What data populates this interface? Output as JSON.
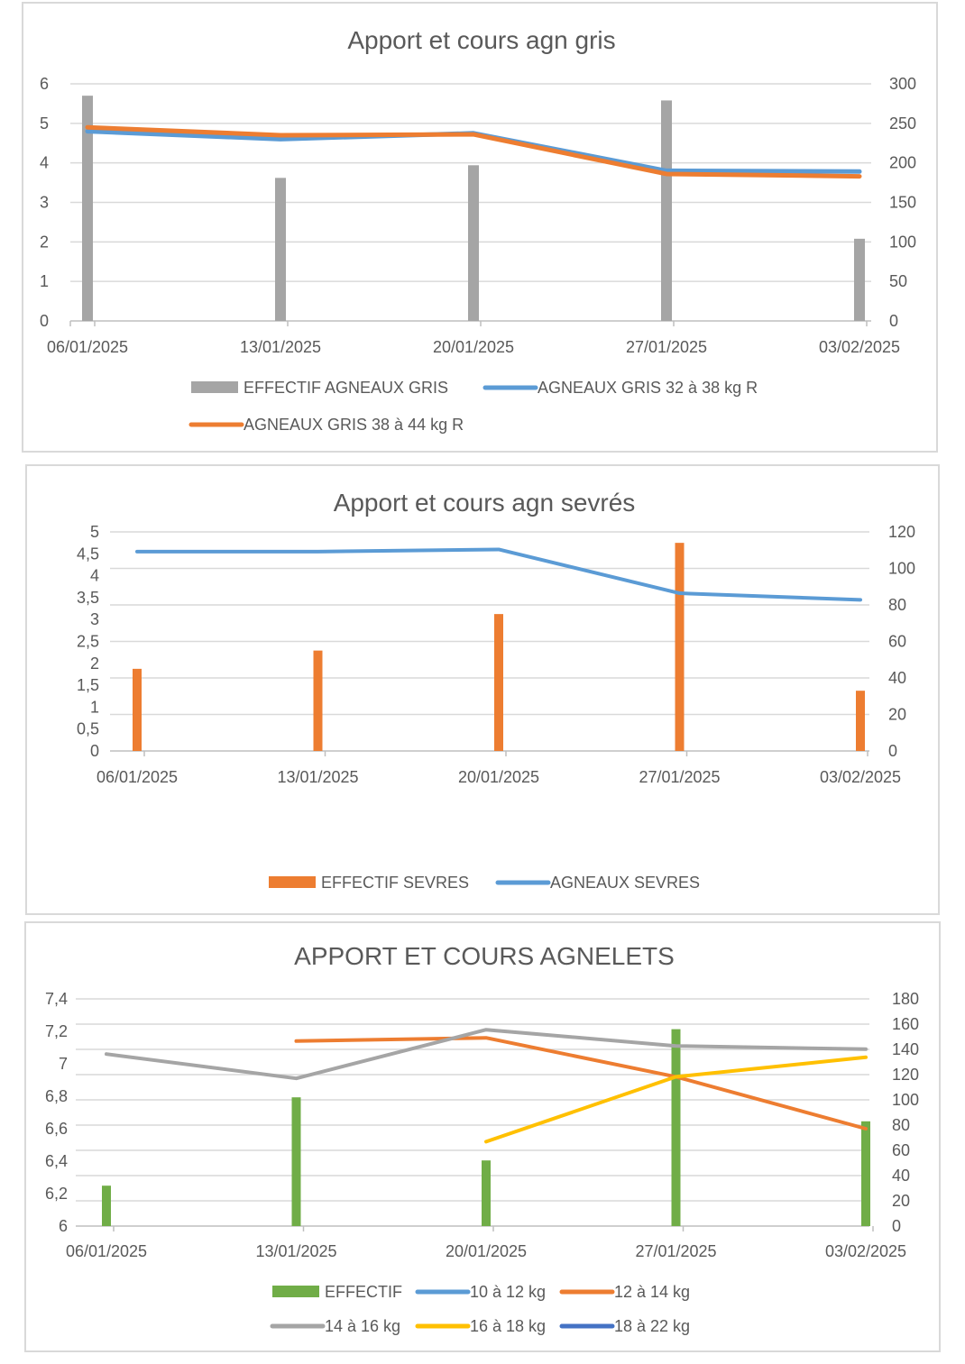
{
  "chart_data": [
    {
      "type": "bar+line",
      "title": "Apport et cours agn gris",
      "categories": [
        "06/01/2025",
        "13/01/2025",
        "20/01/2025",
        "27/01/2025",
        "03/02/2025"
      ],
      "y_left": {
        "min": 0,
        "max": 6,
        "ticks": [
          "0",
          "1",
          "2",
          "3",
          "4",
          "5",
          "6"
        ]
      },
      "y_right": {
        "min": 0,
        "max": 300,
        "ticks": [
          "0",
          "50",
          "100",
          "150",
          "200",
          "250",
          "300"
        ]
      },
      "bars": {
        "name": "EFFECTIF AGNEAUX GRIS",
        "color": "#a5a5a5",
        "axis": "right",
        "values": [
          285,
          181,
          197,
          279,
          104
        ]
      },
      "lines": [
        {
          "name": "AGNEAUX GRIS 32 à 38 kg R",
          "color": "#5b9bd5",
          "axis": "left",
          "values": [
            4.8,
            4.6,
            4.75,
            3.8,
            3.78
          ]
        },
        {
          "name": "AGNEAUX GRIS 38 à 44 kg R",
          "color": "#ed7d31",
          "axis": "left",
          "values": [
            4.9,
            4.7,
            4.72,
            3.72,
            3.66
          ]
        }
      ],
      "legend_position": "bottom"
    },
    {
      "type": "bar+line",
      "title": "Apport et cours agn sevrés",
      "categories": [
        "06/01/2025",
        "13/01/2025",
        "20/01/2025",
        "27/01/2025",
        "03/02/2025"
      ],
      "y_left": {
        "min": 0,
        "max": 5,
        "ticks": [
          "0",
          "0,5",
          "1",
          "1,5",
          "2",
          "2,5",
          "3",
          "3,5",
          "4",
          "4,5",
          "5"
        ]
      },
      "y_right": {
        "min": 0,
        "max": 120,
        "ticks": [
          "0",
          "20",
          "40",
          "60",
          "80",
          "100",
          "120"
        ]
      },
      "bars": {
        "name": "EFFECTIF SEVRES",
        "color": "#ed7d31",
        "axis": "right",
        "values": [
          45,
          55,
          75,
          114,
          33
        ]
      },
      "lines": [
        {
          "name": "AGNEAUX SEVRES",
          "color": "#5b9bd5",
          "axis": "left",
          "values": [
            4.55,
            4.55,
            4.6,
            3.6,
            3.45
          ]
        }
      ],
      "legend_position": "bottom"
    },
    {
      "type": "bar+line",
      "title": "APPORT ET COURS AGNELETS",
      "categories": [
        "06/01/2025",
        "13/01/2025",
        "20/01/2025",
        "27/01/2025",
        "03/02/2025"
      ],
      "y_left": {
        "min": 6,
        "max": 7.4,
        "ticks": [
          "6",
          "6,2",
          "6,4",
          "6,6",
          "6,8",
          "7",
          "7,2",
          "7,4"
        ]
      },
      "y_right": {
        "min": 0,
        "max": 180,
        "ticks": [
          "0",
          "20",
          "40",
          "60",
          "80",
          "100",
          "120",
          "140",
          "160",
          "180"
        ]
      },
      "bars": {
        "name": "EFFECTIF",
        "color": "#70ad47",
        "axis": "right",
        "values": [
          32,
          102,
          52,
          156,
          83
        ]
      },
      "lines": [
        {
          "name": "10 à 12 kg",
          "color": "#5b9bd5",
          "axis": "left",
          "values": [
            null,
            null,
            null,
            null,
            null
          ]
        },
        {
          "name": "12 à 14 kg",
          "color": "#ed7d31",
          "axis": "left",
          "values": [
            null,
            7.14,
            7.16,
            6.92,
            6.6
          ]
        },
        {
          "name": "14 à 16 kg",
          "color": "#a5a5a5",
          "axis": "left",
          "values": [
            7.06,
            6.91,
            7.21,
            7.11,
            7.09
          ]
        },
        {
          "name": "16 à 18 kg",
          "color": "#ffc000",
          "axis": "left",
          "values": [
            null,
            null,
            6.52,
            6.92,
            7.04
          ]
        },
        {
          "name": "18 à 22 kg",
          "color": "#4472c4",
          "axis": "left",
          "values": [
            null,
            null,
            null,
            null,
            null
          ]
        }
      ],
      "legend_position": "bottom"
    }
  ]
}
